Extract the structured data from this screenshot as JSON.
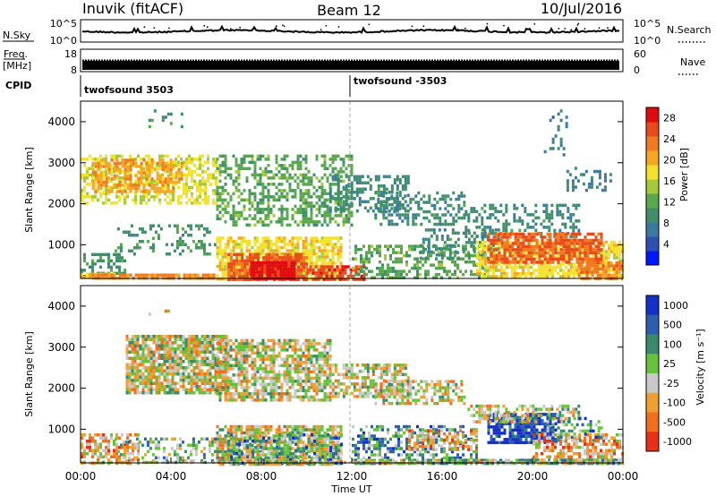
{
  "header": {
    "station": "Inuvik (fitACF)",
    "beam": "Beam 12",
    "date": "10/Jul/2016"
  },
  "top_panels": {
    "nsky_label": "N.Sky",
    "nsky_ticks": [
      "10^5",
      "10^0"
    ],
    "nsearch_label": "N.Search",
    "nsearch_ticks": [
      "10^5",
      "10^0"
    ],
    "freq_label": "Freq.",
    "freq_unit": "[MHz]",
    "freq_ticks": [
      "18",
      "8"
    ],
    "nave_label": "Nave",
    "nave_ticks": [
      "60",
      "0"
    ],
    "cpid_label": "CPID",
    "cpid_segments": [
      {
        "label": "twofsound 3503",
        "start_hour": 0
      },
      {
        "label": "twofsound -3503",
        "start_hour": 12
      }
    ]
  },
  "chart_data": [
    {
      "type": "heatmap",
      "name": "power",
      "ylabel": "Slant Range [km]",
      "yticks": [
        "1000",
        "2000",
        "3000",
        "4000"
      ],
      "ylim": [
        180,
        4500
      ],
      "xlim_hours": [
        0,
        24
      ],
      "colorbar_label": "Power [dB]",
      "colorbar_ticks": [
        "4",
        "8",
        "12",
        "16",
        "20",
        "24",
        "28"
      ],
      "colorbar_range": [
        0,
        30
      ],
      "colors": [
        "#0018ff",
        "#2f4fb5",
        "#3b7a9e",
        "#3f8f6a",
        "#5aa84e",
        "#a6c93a",
        "#f2e22e",
        "#f5a623",
        "#f07a1f",
        "#e84a1c",
        "#e00a10"
      ],
      "regions": [
        {
          "t0": 0.0,
          "t1": 2.0,
          "r0": 200,
          "r1": 800,
          "level": 10,
          "density": 0.45
        },
        {
          "t0": 0.0,
          "t1": 1.5,
          "r0": 200,
          "r1": 320,
          "level": 20,
          "density": 0.85
        },
        {
          "t0": 0.0,
          "t1": 6.0,
          "r0": 2000,
          "r1": 3200,
          "level": 17,
          "density": 0.55
        },
        {
          "t0": 0.5,
          "t1": 4.5,
          "r0": 2300,
          "r1": 3100,
          "level": 21,
          "density": 0.6
        },
        {
          "t0": 1.5,
          "t1": 6.0,
          "r0": 800,
          "r1": 1500,
          "level": 10,
          "density": 0.25
        },
        {
          "t0": 0.5,
          "t1": 6.0,
          "r0": 180,
          "r1": 300,
          "level": 22,
          "density": 0.9
        },
        {
          "t0": 6.0,
          "t1": 11.5,
          "r0": 180,
          "r1": 1200,
          "level": 18,
          "density": 0.75
        },
        {
          "t0": 6.5,
          "t1": 10.0,
          "r0": 180,
          "r1": 800,
          "level": 25,
          "density": 0.85
        },
        {
          "t0": 7.5,
          "t1": 9.5,
          "r0": 180,
          "r1": 600,
          "level": 29,
          "density": 0.95
        },
        {
          "t0": 10.0,
          "t1": 12.5,
          "r0": 180,
          "r1": 500,
          "level": 26,
          "density": 0.7
        },
        {
          "t0": 6.0,
          "t1": 12.0,
          "r0": 1500,
          "r1": 3200,
          "level": 12,
          "density": 0.45
        },
        {
          "t0": 11.0,
          "t1": 14.5,
          "r0": 1800,
          "r1": 2700,
          "level": 9,
          "density": 0.5
        },
        {
          "t0": 13.0,
          "t1": 17.0,
          "r0": 1500,
          "r1": 2300,
          "level": 9,
          "density": 0.45
        },
        {
          "t0": 12.0,
          "t1": 18.0,
          "r0": 180,
          "r1": 1000,
          "level": 12,
          "density": 0.45
        },
        {
          "t0": 15.0,
          "t1": 18.5,
          "r0": 700,
          "r1": 1400,
          "level": 9,
          "density": 0.35
        },
        {
          "t0": 17.0,
          "t1": 22.0,
          "r0": 1200,
          "r1": 2000,
          "level": 9,
          "density": 0.35
        },
        {
          "t0": 17.5,
          "t1": 24.0,
          "r0": 200,
          "r1": 1100,
          "level": 18,
          "density": 0.7
        },
        {
          "t0": 18.0,
          "t1": 23.0,
          "r0": 600,
          "r1": 1300,
          "level": 25,
          "density": 0.75
        },
        {
          "t0": 22.0,
          "t1": 24.0,
          "r0": 180,
          "r1": 600,
          "level": 23,
          "density": 0.8
        },
        {
          "t0": 21.5,
          "t1": 23.5,
          "r0": 2300,
          "r1": 2900,
          "level": 8,
          "density": 0.3
        },
        {
          "t0": 3.0,
          "t1": 4.5,
          "r0": 3700,
          "r1": 4300,
          "level": 10,
          "density": 0.12
        },
        {
          "t0": 20.5,
          "t1": 21.5,
          "r0": 3200,
          "r1": 4300,
          "level": 7,
          "density": 0.15
        }
      ]
    },
    {
      "type": "heatmap",
      "name": "velocity",
      "ylabel": "Slant Range [km]",
      "yticks": [
        "1000",
        "2000",
        "3000",
        "4000"
      ],
      "ylim": [
        180,
        4500
      ],
      "xlim_hours": [
        0,
        24
      ],
      "xticks": [
        "00:00",
        "04:00",
        "08:00",
        "12:00",
        "16:00",
        "20:00",
        "00:00"
      ],
      "xlabel": "Time UT",
      "colorbar_label": "Velocity [m s⁻¹]",
      "colorbar_ticks": [
        "1000",
        "500",
        "100",
        "25",
        "-25",
        "-100",
        "-500",
        "-1000"
      ],
      "colors": [
        "#1430c8",
        "#2c5fb0",
        "#3a8a6e",
        "#66c23a",
        "#c8c8c8",
        "#f0a030",
        "#f07020",
        "#e83018"
      ],
      "regions": [
        {
          "t0": 2.0,
          "t1": 6.5,
          "r0": 1900,
          "r1": 3300,
          "level": 4,
          "density": 0.85
        },
        {
          "t0": 6.0,
          "t1": 11.0,
          "r0": 1700,
          "r1": 3200,
          "level": 4,
          "density": 0.7
        },
        {
          "t0": 11.0,
          "t1": 14.5,
          "r0": 1800,
          "r1": 2600,
          "level": 4,
          "density": 0.6
        },
        {
          "t0": 13.0,
          "t1": 17.0,
          "r0": 1600,
          "r1": 2200,
          "level": 4,
          "density": 0.5
        },
        {
          "t0": 6.0,
          "t1": 11.5,
          "r0": 180,
          "r1": 1100,
          "level": 4,
          "density": 0.8
        },
        {
          "t0": 0.0,
          "t1": 2.5,
          "r0": 200,
          "r1": 900,
          "level": 5,
          "density": 0.55
        },
        {
          "t0": 1.5,
          "t1": 6.0,
          "r0": 200,
          "r1": 800,
          "level": 3,
          "density": 0.4
        },
        {
          "t0": 6.5,
          "t1": 11.5,
          "r0": 200,
          "r1": 900,
          "level": 2,
          "density": 0.35
        },
        {
          "t0": 12.0,
          "t1": 17.5,
          "r0": 300,
          "r1": 1100,
          "level": 2,
          "density": 0.45
        },
        {
          "t0": 14.5,
          "t1": 17.5,
          "r0": 500,
          "r1": 1000,
          "level": 5,
          "density": 0.6
        },
        {
          "t0": 18.0,
          "t1": 21.0,
          "r0": 700,
          "r1": 1400,
          "level": 0,
          "density": 0.8
        },
        {
          "t0": 17.0,
          "t1": 22.0,
          "r0": 1200,
          "r1": 1600,
          "level": 4,
          "density": 0.45
        },
        {
          "t0": 20.0,
          "t1": 24.0,
          "r0": 200,
          "r1": 900,
          "level": 5,
          "density": 0.65
        },
        {
          "t0": 20.5,
          "t1": 23.0,
          "r0": 700,
          "r1": 1300,
          "level": 2,
          "density": 0.35
        },
        {
          "t0": 12.0,
          "t1": 24.0,
          "r0": 180,
          "r1": 280,
          "level": 3,
          "density": 0.8
        },
        {
          "t0": 0.0,
          "t1": 24.0,
          "r0": 180,
          "r1": 230,
          "level": 4,
          "density": 0.6
        },
        {
          "t0": 3.0,
          "t1": 4.5,
          "r0": 3700,
          "r1": 4300,
          "level": 5,
          "density": 0.12
        }
      ]
    }
  ]
}
